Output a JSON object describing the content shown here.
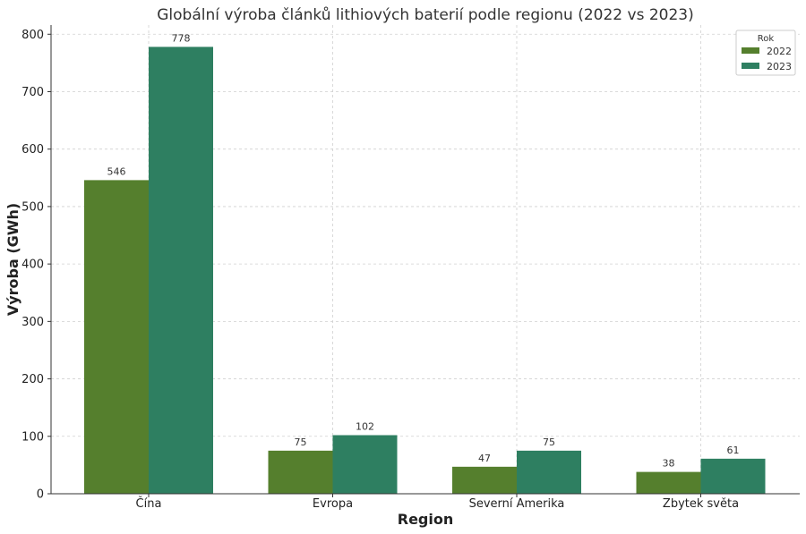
{
  "chart_data": {
    "type": "bar",
    "title": "Globální výroba článků lithiových baterií podle regionu (2022 vs 2023)",
    "xlabel": "Region",
    "ylabel": "Výroba (GWh)",
    "categories": [
      "Čína",
      "Evropa",
      "Severní Amerika",
      "Zbytek světa"
    ],
    "series": [
      {
        "name": "2022",
        "values": [
          546,
          75,
          47,
          38
        ],
        "color": "#557f2d"
      },
      {
        "name": "2023",
        "values": [
          778,
          102,
          75,
          61
        ],
        "color": "#2e7f61"
      }
    ],
    "ylim": [
      0,
      816
    ],
    "yticks": [
      0,
      100,
      200,
      300,
      400,
      500,
      600,
      700,
      800
    ],
    "grid": true,
    "legend": {
      "title": "Rok",
      "position": "top-right"
    }
  }
}
